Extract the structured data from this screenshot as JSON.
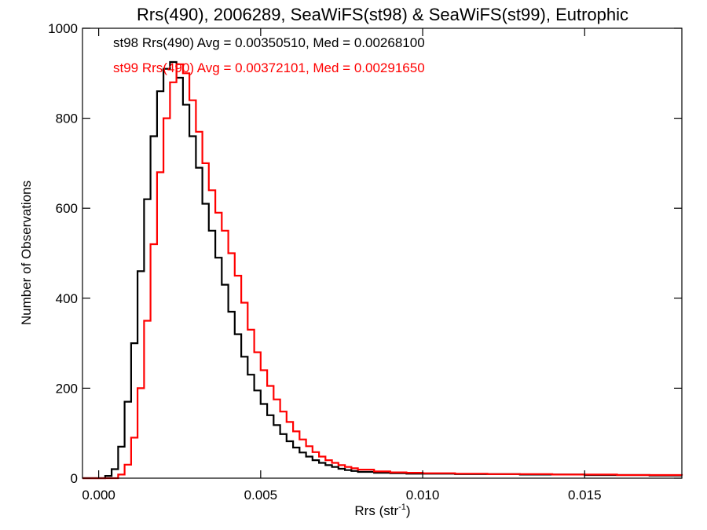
{
  "chart_data": {
    "type": "line",
    "title": "Rrs(490), 2006289, SeaWiFS(st98) & SeaWiFS(st99), Eutrophic",
    "xlabel_main": "Rrs (str",
    "xlabel_sup": "-1",
    "xlabel_end": ")",
    "ylabel": "Number of Observations",
    "xlim": [
      -0.0005,
      0.018
    ],
    "ylim": [
      0,
      1000
    ],
    "x_ticks": [
      0.0,
      0.005,
      0.01,
      0.015
    ],
    "x_tick_labels": [
      "0.000",
      "0.005",
      "0.010",
      "0.015"
    ],
    "y_ticks": [
      0,
      200,
      400,
      600,
      800,
      1000
    ],
    "y_tick_labels": [
      "0",
      "200",
      "400",
      "600",
      "800",
      "1000"
    ],
    "grid": false,
    "legend_position": "top-left",
    "step": true,
    "series": [
      {
        "name": "st98 Rrs(490) Avg = 0.00350510, Med = 0.00268100",
        "color": "#000000",
        "points": [
          [
            -0.0005,
            0
          ],
          [
            0.0,
            0
          ],
          [
            0.0002,
            5
          ],
          [
            0.0004,
            20
          ],
          [
            0.0006,
            70
          ],
          [
            0.0008,
            170
          ],
          [
            0.001,
            300
          ],
          [
            0.0012,
            460
          ],
          [
            0.0014,
            620
          ],
          [
            0.0016,
            760
          ],
          [
            0.0018,
            860
          ],
          [
            0.002,
            910
          ],
          [
            0.0022,
            925
          ],
          [
            0.0024,
            890
          ],
          [
            0.0026,
            830
          ],
          [
            0.0028,
            760
          ],
          [
            0.003,
            690
          ],
          [
            0.0032,
            610
          ],
          [
            0.0034,
            550
          ],
          [
            0.0036,
            490
          ],
          [
            0.0038,
            430
          ],
          [
            0.004,
            370
          ],
          [
            0.0042,
            320
          ],
          [
            0.0044,
            270
          ],
          [
            0.0046,
            230
          ],
          [
            0.0048,
            195
          ],
          [
            0.005,
            165
          ],
          [
            0.0052,
            140
          ],
          [
            0.0054,
            118
          ],
          [
            0.0056,
            98
          ],
          [
            0.0058,
            82
          ],
          [
            0.006,
            68
          ],
          [
            0.0062,
            57
          ],
          [
            0.0064,
            48
          ],
          [
            0.0066,
            40
          ],
          [
            0.0068,
            34
          ],
          [
            0.007,
            29
          ],
          [
            0.0072,
            25
          ],
          [
            0.0074,
            21
          ],
          [
            0.0076,
            18
          ],
          [
            0.0078,
            16
          ],
          [
            0.008,
            14
          ],
          [
            0.0085,
            12
          ],
          [
            0.009,
            11
          ],
          [
            0.0095,
            10
          ],
          [
            0.01,
            10
          ],
          [
            0.011,
            9
          ],
          [
            0.012,
            9
          ],
          [
            0.013,
            8
          ],
          [
            0.014,
            8
          ],
          [
            0.015,
            7
          ],
          [
            0.016,
            7
          ],
          [
            0.017,
            6
          ],
          [
            0.018,
            6
          ]
        ]
      },
      {
        "name": "st99 Rrs(490) Avg = 0.00372101, Med = 0.00291650",
        "color": "#ff0000",
        "points": [
          [
            -0.0005,
            0
          ],
          [
            0.0004,
            0
          ],
          [
            0.0006,
            8
          ],
          [
            0.0008,
            30
          ],
          [
            0.001,
            90
          ],
          [
            0.0012,
            200
          ],
          [
            0.0014,
            350
          ],
          [
            0.0016,
            520
          ],
          [
            0.0018,
            680
          ],
          [
            0.002,
            800
          ],
          [
            0.0022,
            880
          ],
          [
            0.0024,
            920
          ],
          [
            0.0026,
            900
          ],
          [
            0.0028,
            840
          ],
          [
            0.003,
            770
          ],
          [
            0.0032,
            700
          ],
          [
            0.0034,
            640
          ],
          [
            0.0036,
            590
          ],
          [
            0.0038,
            550
          ],
          [
            0.004,
            500
          ],
          [
            0.0042,
            450
          ],
          [
            0.0044,
            390
          ],
          [
            0.0046,
            330
          ],
          [
            0.0048,
            280
          ],
          [
            0.005,
            240
          ],
          [
            0.0052,
            205
          ],
          [
            0.0054,
            175
          ],
          [
            0.0056,
            148
          ],
          [
            0.0058,
            125
          ],
          [
            0.006,
            104
          ],
          [
            0.0062,
            86
          ],
          [
            0.0064,
            71
          ],
          [
            0.0066,
            58
          ],
          [
            0.0068,
            48
          ],
          [
            0.007,
            40
          ],
          [
            0.0072,
            34
          ],
          [
            0.0074,
            29
          ],
          [
            0.0076,
            25
          ],
          [
            0.0078,
            22
          ],
          [
            0.008,
            19
          ],
          [
            0.0085,
            15
          ],
          [
            0.009,
            13
          ],
          [
            0.0095,
            12
          ],
          [
            0.01,
            11
          ],
          [
            0.011,
            10
          ],
          [
            0.012,
            9
          ],
          [
            0.013,
            9
          ],
          [
            0.014,
            8
          ],
          [
            0.015,
            8
          ],
          [
            0.016,
            7
          ],
          [
            0.017,
            7
          ],
          [
            0.018,
            6
          ]
        ]
      }
    ]
  }
}
